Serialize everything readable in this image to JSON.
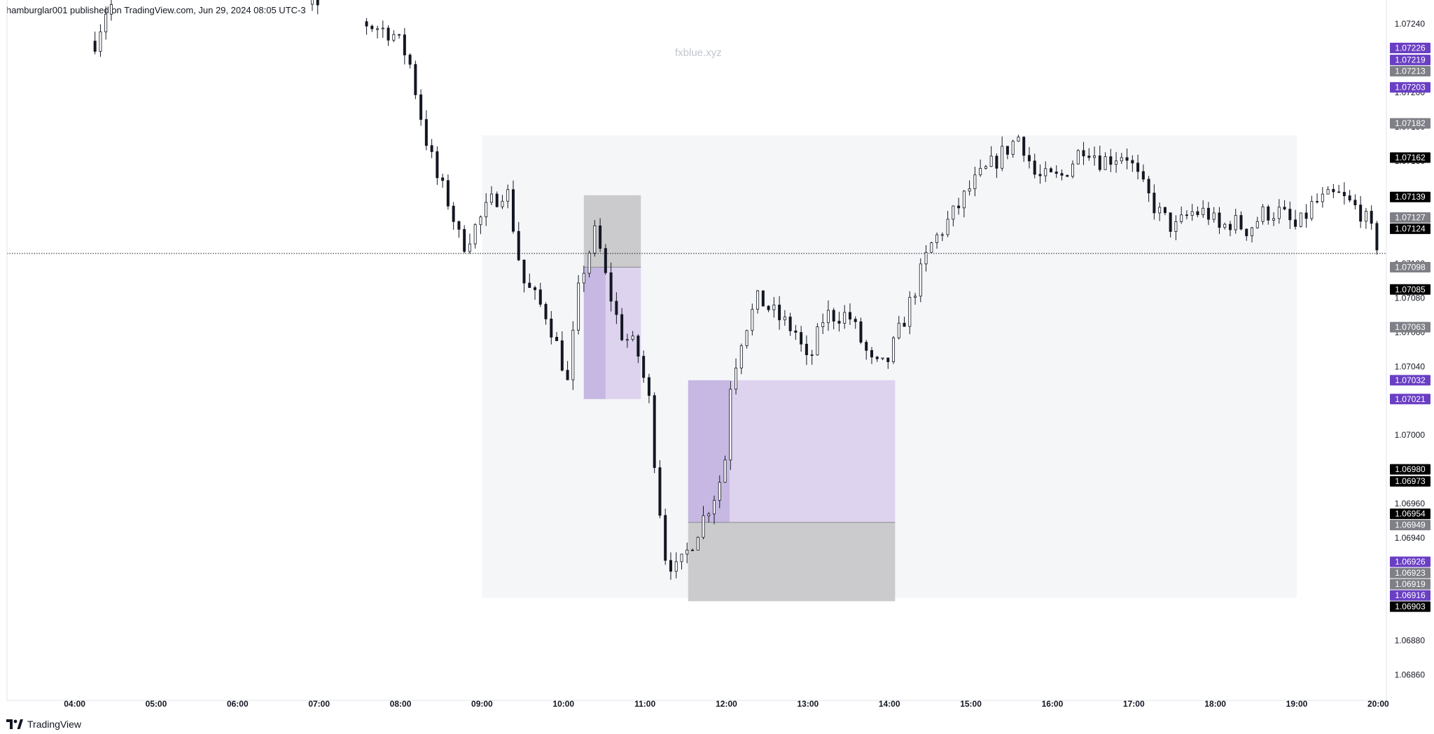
{
  "header": {
    "published_text": "hamburglar001 published on TradingView.com, Jun 29, 2024 08:05 UTC-3"
  },
  "watermark": {
    "text": "fxblue.xyz"
  },
  "footer": {
    "brand": "TradingView"
  },
  "colors": {
    "candle": "#131722",
    "session_bg": "#f5f6f8",
    "target_zone": "#ddd3ee",
    "entry_zone": "#c6b8e2",
    "stop_zone": "#cbcbcd",
    "badge_purple": "#6a3fc4",
    "badge_gray": "#7f8087",
    "badge_black": "#000000",
    "price_line": "#131722"
  },
  "chart_data": {
    "type": "candlestick",
    "symbol_interval": "",
    "y_axis": {
      "range": [
        1.0685,
        1.07245
      ],
      "ticks": [
        "1.06860",
        "1.06880",
        "1.06900",
        "1.06920",
        "1.06940",
        "1.06960",
        "1.06980",
        "1.07000",
        "1.07020",
        "1.07040",
        "1.07060",
        "1.07080",
        "1.07100",
        "1.07120",
        "1.07140",
        "1.07160",
        "1.07180",
        "1.07200",
        "1.07220",
        "1.07240"
      ]
    },
    "x_axis": {
      "range_hours": [
        3.17,
        20.1
      ],
      "ticks": [
        "04:00",
        "05:00",
        "06:00",
        "07:00",
        "08:00",
        "09:00",
        "10:00",
        "11:00",
        "12:00",
        "13:00",
        "14:00",
        "15:00",
        "16:00",
        "17:00",
        "18:00",
        "19:00",
        "20:00"
      ]
    },
    "candle_path": [
      [
        4.25,
        1.0723
      ],
      [
        4.4,
        1.0725
      ],
      [
        5.0,
        1.0726
      ],
      [
        6.0,
        1.0726
      ],
      [
        7.0,
        1.0725
      ],
      [
        7.6,
        1.0724
      ],
      [
        7.9,
        1.07235
      ],
      [
        8.1,
        1.0722
      ],
      [
        8.3,
        1.07175
      ],
      [
        8.45,
        1.0715
      ],
      [
        8.6,
        1.07135
      ],
      [
        8.75,
        1.0711
      ],
      [
        8.9,
        1.0712
      ],
      [
        9.1,
        1.07135
      ],
      [
        9.3,
        1.07145
      ],
      [
        9.5,
        1.0709
      ],
      [
        9.8,
        1.0707
      ],
      [
        10.0,
        1.0704
      ],
      [
        10.05,
        1.0703
      ],
      [
        10.2,
        1.0709
      ],
      [
        10.4,
        1.0712
      ],
      [
        10.5,
        1.07095
      ],
      [
        10.7,
        1.0706
      ],
      [
        10.9,
        1.0705
      ],
      [
        11.05,
        1.0702
      ],
      [
        11.15,
        1.0697
      ],
      [
        11.25,
        1.0693
      ],
      [
        11.4,
        1.0692
      ],
      [
        11.55,
        1.06935
      ],
      [
        11.7,
        1.0695
      ],
      [
        11.9,
        1.0697
      ],
      [
        12.0,
        1.0699
      ],
      [
        12.05,
        1.0703
      ],
      [
        12.2,
        1.0706
      ],
      [
        12.4,
        1.0708
      ],
      [
        12.6,
        1.0707
      ],
      [
        12.85,
        1.0706
      ],
      [
        13.0,
        1.0704
      ],
      [
        13.2,
        1.0707
      ],
      [
        13.5,
        1.0707
      ],
      [
        13.8,
        1.0704
      ],
      [
        13.95,
        1.0704
      ],
      [
        14.2,
        1.0707
      ],
      [
        14.5,
        1.0711
      ],
      [
        14.8,
        1.0713
      ],
      [
        15.0,
        1.07145
      ],
      [
        15.3,
        1.0716
      ],
      [
        15.6,
        1.07175
      ],
      [
        15.8,
        1.0715
      ],
      [
        16.1,
        1.0715
      ],
      [
        16.4,
        1.0717
      ],
      [
        16.6,
        1.0716
      ],
      [
        16.9,
        1.07165
      ],
      [
        17.1,
        1.07145
      ],
      [
        17.3,
        1.0713
      ],
      [
        17.5,
        1.0712
      ],
      [
        17.7,
        1.0713
      ],
      [
        17.9,
        1.0713
      ],
      [
        18.05,
        1.0712
      ],
      [
        18.2,
        1.07125
      ],
      [
        18.4,
        1.0712
      ],
      [
        18.6,
        1.0713
      ],
      [
        18.8,
        1.0713
      ],
      [
        19.0,
        1.0712
      ],
      [
        19.2,
        1.07135
      ],
      [
        19.5,
        1.0714
      ],
      [
        19.8,
        1.0713
      ],
      [
        20.0,
        1.0711
      ]
    ],
    "current_price": 1.07106,
    "session_box": {
      "start": 9.0,
      "end": 19.0,
      "top": 1.07175,
      "bottom": 1.06905
    },
    "positions": [
      {
        "type": "short",
        "start": 10.25,
        "end": 10.95,
        "stop": 1.0714,
        "entry": 1.07098,
        "target": 1.07021
      },
      {
        "type": "long",
        "start": 11.53,
        "end": 14.07,
        "stop": 1.06903,
        "entry": 1.06949,
        "target": 1.07032
      }
    ],
    "price_badges": [
      {
        "label": "1.07226",
        "value": 1.07226,
        "color": "purple"
      },
      {
        "label": "1.07219",
        "value": 1.07219,
        "color": "purple"
      },
      {
        "label": "1.07213",
        "value": 1.07213,
        "color": "gray"
      },
      {
        "label": "1.07203",
        "value": 1.07203,
        "color": "purple"
      },
      {
        "label": "1.07182",
        "value": 1.07182,
        "color": "gray"
      },
      {
        "label": "1.07162",
        "value": 1.07162,
        "color": "black"
      },
      {
        "label": "1.07139",
        "value": 1.07139,
        "color": "black"
      },
      {
        "label": "1.07127",
        "value": 1.07127,
        "color": "gray"
      },
      {
        "label": "1.07124",
        "value": 1.07124,
        "color": "black"
      },
      {
        "label": "1.07098",
        "value": 1.07098,
        "color": "gray"
      },
      {
        "label": "1.07085",
        "value": 1.07085,
        "color": "black"
      },
      {
        "label": "1.07063",
        "value": 1.07063,
        "color": "gray"
      },
      {
        "label": "1.07032",
        "value": 1.07032,
        "color": "purple"
      },
      {
        "label": "1.07021",
        "value": 1.07021,
        "color": "purple"
      },
      {
        "label": "1.06980",
        "value": 1.0698,
        "color": "black"
      },
      {
        "label": "1.06973",
        "value": 1.06973,
        "color": "black"
      },
      {
        "label": "1.06954",
        "value": 1.06954,
        "color": "black"
      },
      {
        "label": "1.06949",
        "value": 1.06949,
        "color": "gray"
      },
      {
        "label": "1.06926",
        "value": 1.06926,
        "color": "purple"
      },
      {
        "label": "1.06923",
        "value": 1.06923,
        "color": "gray"
      },
      {
        "label": "1.06919",
        "value": 1.06919,
        "color": "gray"
      },
      {
        "label": "1.06916",
        "value": 1.06916,
        "color": "purple"
      },
      {
        "label": "1.06903",
        "value": 1.06903,
        "color": "black"
      }
    ]
  }
}
